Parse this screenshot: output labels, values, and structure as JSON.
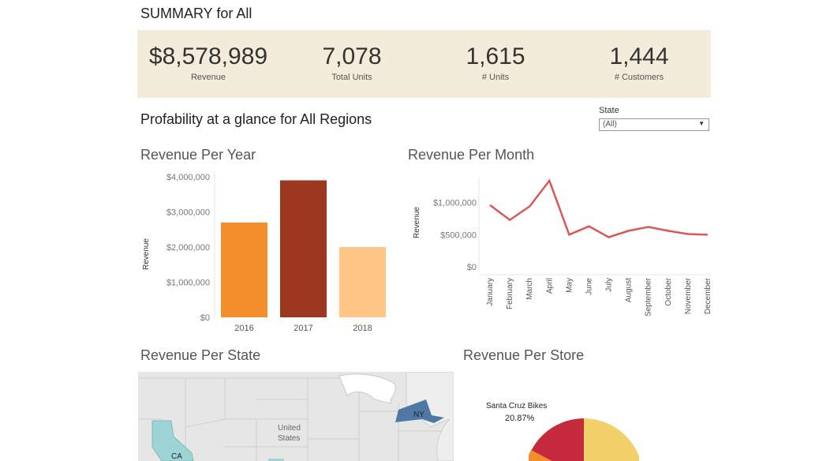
{
  "header": {
    "title": "SUMMARY for All"
  },
  "kpis": [
    {
      "value": "$8,578,989",
      "label": "Revenue"
    },
    {
      "value": "7,078",
      "label": "Total Units"
    },
    {
      "value": "1,615",
      "label": "# Units"
    },
    {
      "value": "1,444",
      "label": "# Customers"
    }
  ],
  "subtitle": "Profability at a glance for All Regions",
  "filter": {
    "label": "State",
    "value": "(All)"
  },
  "charts": {
    "year_title": "Revenue Per Year",
    "month_title": "Revenue Per Month",
    "state_title": "Revenue Per State",
    "store_title": "Revenue Per Store"
  },
  "map": {
    "country_label": [
      "United",
      "States"
    ],
    "ny_label": "NY",
    "ca_label": "CA"
  },
  "pie_label": {
    "name": "Santa Cruz Bikes",
    "pct": "20.87%"
  },
  "colors": {
    "bar_2016": "#f28e2b",
    "bar_2017": "#9c3720",
    "bar_2018": "#ffc685",
    "line": "#d65858",
    "map_ny": "#4e79a7",
    "map_ca": "#9fd4d6",
    "pie_yellow": "#f2d16b",
    "pie_red": "#c42a3b",
    "pie_orange": "#f28e2b"
  },
  "chart_data": [
    {
      "type": "bar",
      "title": "Revenue Per Year",
      "ylabel": "Revenue",
      "categories": [
        "2016",
        "2017",
        "2018"
      ],
      "values": [
        2700000,
        3900000,
        2000000
      ],
      "ylim": [
        0,
        4000000
      ],
      "yticks": [
        0,
        1000000,
        2000000,
        3000000,
        4000000
      ],
      "ytick_labels": [
        "$0",
        "$1,000,000",
        "$2,000,000",
        "$3,000,000",
        "$4,000,000"
      ]
    },
    {
      "type": "line",
      "title": "Revenue Per Month",
      "ylabel": "Revenue",
      "categories": [
        "January",
        "February",
        "March",
        "April",
        "May",
        "June",
        "July",
        "August",
        "September",
        "October",
        "November",
        "December"
      ],
      "values": [
        960000,
        730000,
        940000,
        1340000,
        500000,
        630000,
        460000,
        560000,
        620000,
        560000,
        510000,
        500000
      ],
      "ylim": [
        0,
        1400000
      ],
      "yticks": [
        0,
        500000,
        1000000
      ],
      "ytick_labels": [
        "$0",
        "$500,000",
        "$1,000,000"
      ]
    },
    {
      "type": "pie",
      "title": "Revenue Per Store",
      "slices": [
        {
          "label": "Santa Cruz Bikes",
          "value": 20.87
        }
      ]
    }
  ]
}
